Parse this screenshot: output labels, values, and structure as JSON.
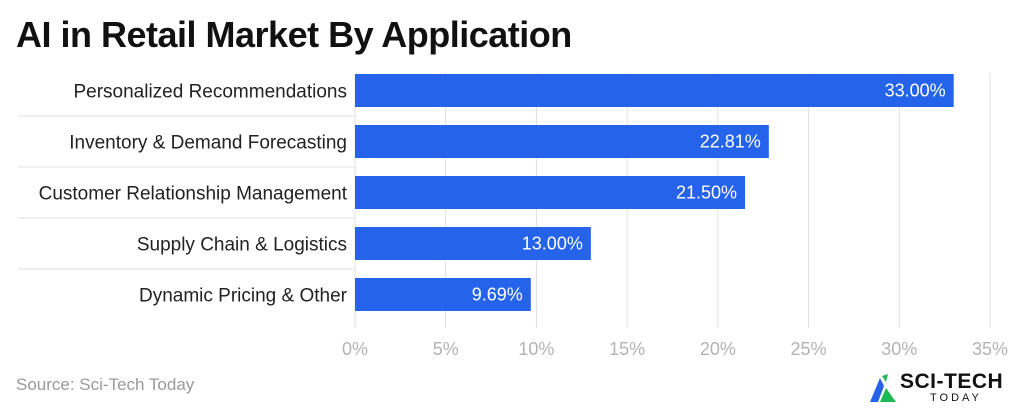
{
  "title": "AI in Retail Market By Application",
  "source": "Source: Sci-Tech Today",
  "logo": {
    "text": "SCI-TECH",
    "sub": "TODAY"
  },
  "colors": {
    "bar": "#2563eb",
    "grid": "#e0e0e0",
    "tick": "#b3b3b3"
  },
  "chart_data": {
    "type": "bar",
    "orientation": "horizontal",
    "title": "AI in Retail Market By Application",
    "categories": [
      "Personalized Recommendations",
      "Inventory & Demand Forecasting",
      "Customer Relationship Management",
      "Supply Chain & Logistics",
      "Dynamic Pricing & Other"
    ],
    "values": [
      33.0,
      22.81,
      21.5,
      13.0,
      9.69
    ],
    "value_labels": [
      "33.00%",
      "22.81%",
      "21.50%",
      "13.00%",
      "9.69%"
    ],
    "xlim": [
      0,
      35
    ],
    "xticks": [
      0,
      5,
      10,
      15,
      20,
      25,
      30,
      35
    ],
    "xtick_labels": [
      "0%",
      "5%",
      "10%",
      "15%",
      "20%",
      "25%",
      "30%",
      "35%"
    ],
    "grid": true
  }
}
